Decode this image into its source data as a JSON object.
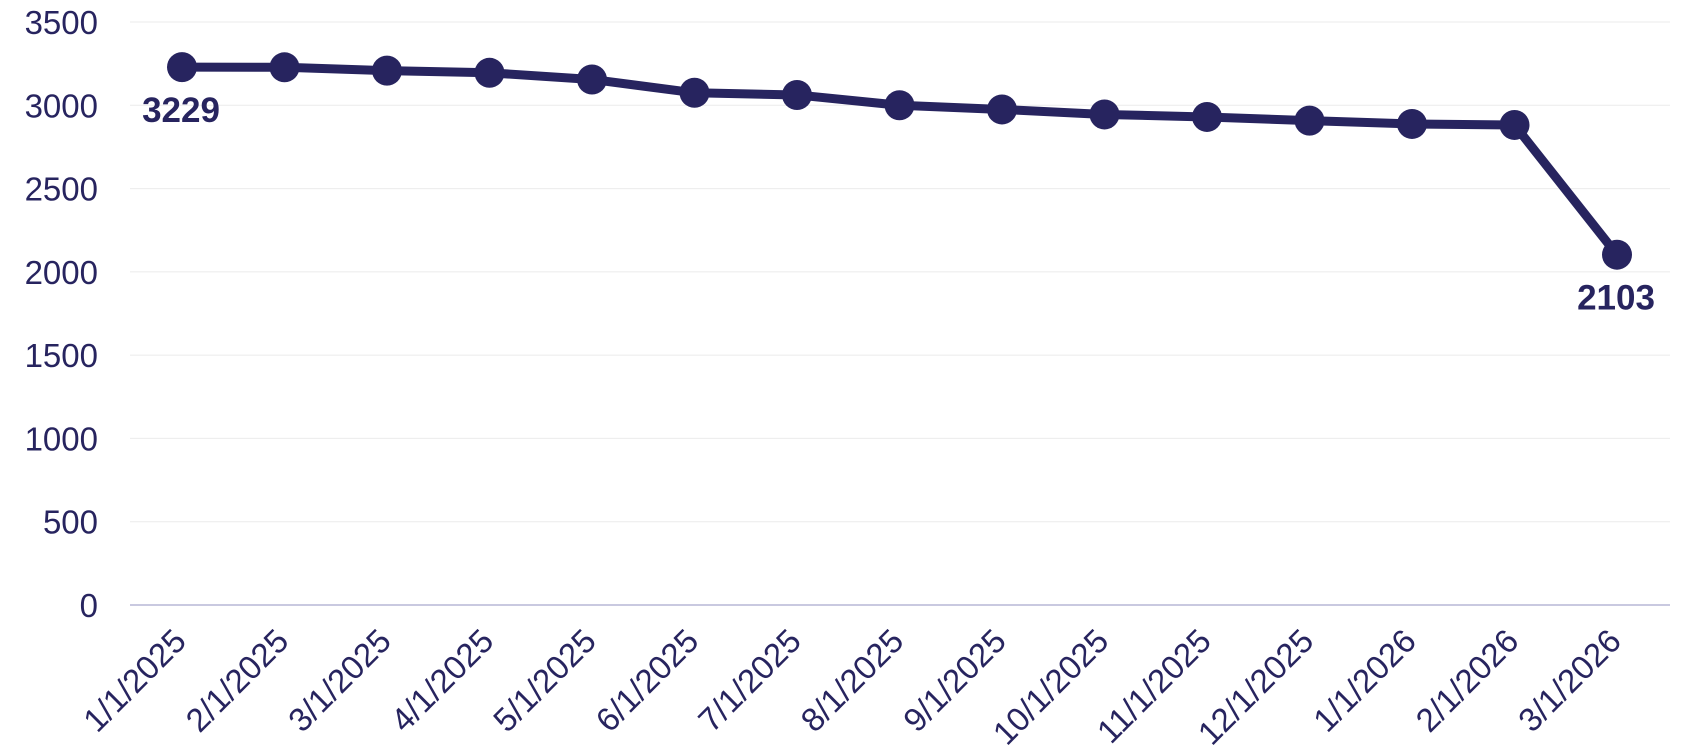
{
  "chart_data": {
    "type": "line",
    "title": "",
    "xlabel": "",
    "ylabel": "",
    "categories": [
      "1/1/2025",
      "2/1/2025",
      "3/1/2025",
      "4/1/2025",
      "5/1/2025",
      "6/1/2025",
      "7/1/2025",
      "8/1/2025",
      "9/1/2025",
      "10/1/2025",
      "11/1/2025",
      "12/1/2025",
      "1/1/2026",
      "2/1/2026",
      "3/1/2026"
    ],
    "series": [
      {
        "values": [
          3229,
          3228,
          3208,
          3195,
          3155,
          3075,
          3062,
          3000,
          2975,
          2945,
          2930,
          2908,
          2888,
          2882,
          2103
        ]
      }
    ],
    "data_labels": [
      {
        "index": 0,
        "text": "3229"
      },
      {
        "index": 14,
        "text": "2103"
      }
    ],
    "ylim": [
      0,
      3500
    ],
    "yticks": [
      0,
      500,
      1000,
      1500,
      2000,
      2500,
      3000,
      3500
    ],
    "grid": true,
    "legend": "none",
    "colors": {
      "line": "#27245f",
      "text": "#27245f",
      "grid": "#ebebeb",
      "axis": "#c9c9e0"
    }
  }
}
